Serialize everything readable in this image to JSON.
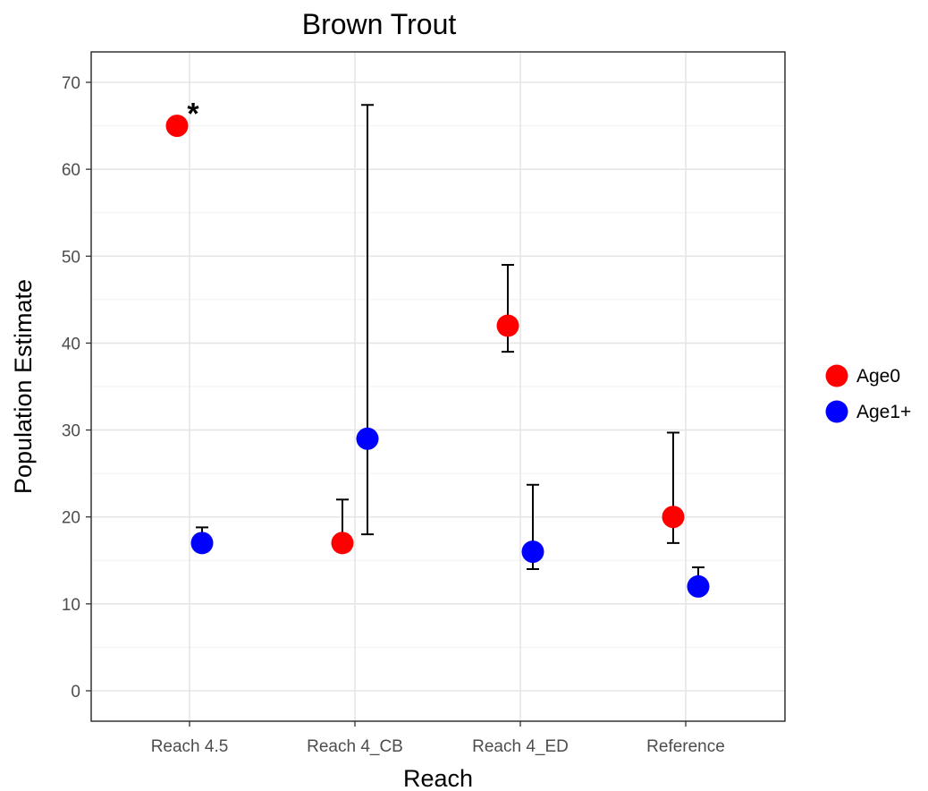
{
  "chart_data": {
    "type": "scatter",
    "title": "Brown Trout",
    "xlabel": "Reach",
    "ylabel": "Population Estimate",
    "categories": [
      "Reach 4.5",
      "Reach 4_CB",
      "Reach 4_ED",
      "Reference"
    ],
    "ylim": [
      -3.5,
      73.5
    ],
    "yticks": [
      0,
      10,
      20,
      30,
      40,
      50,
      60,
      70
    ],
    "grid": true,
    "legend_position": "right",
    "series": [
      {
        "name": "Age0",
        "color": "#ff0000",
        "values": [
          65,
          17,
          42,
          20
        ],
        "error_low": [
          null,
          17,
          39,
          17
        ],
        "error_high": [
          null,
          22,
          49,
          29.7
        ]
      },
      {
        "name": "Age1+",
        "color": "#0000ff",
        "values": [
          17,
          29,
          16,
          12
        ],
        "error_low": [
          17,
          18,
          14,
          12
        ],
        "error_high": [
          18.8,
          67.4,
          23.7,
          14.2
        ]
      }
    ],
    "annotations": [
      {
        "text": "*",
        "category": "Reach 4.5",
        "series": "Age0"
      }
    ]
  }
}
